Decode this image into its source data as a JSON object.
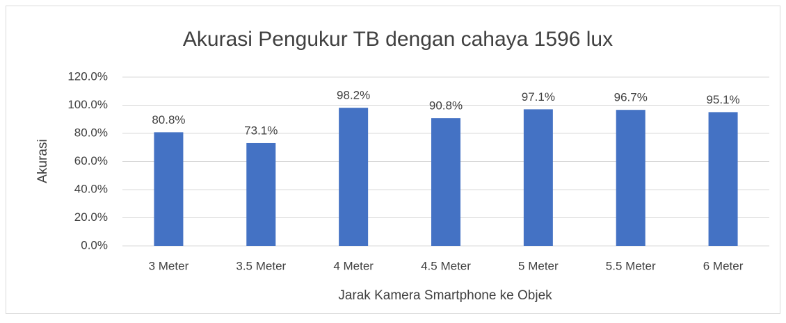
{
  "chart_data": {
    "type": "bar",
    "title": "Akurasi Pengukur TB dengan cahaya 1596 lux",
    "x_label": "Jarak Kamera Smartphone ke Objek",
    "y_label": "Akurasi",
    "categories": [
      "3 Meter",
      "3.5 Meter",
      "4 Meter",
      "4.5 Meter",
      "5 Meter",
      "5.5 Meter",
      "6 Meter"
    ],
    "values": [
      80.8,
      73.1,
      98.2,
      90.8,
      97.1,
      96.7,
      95.1
    ],
    "value_labels": [
      "80.8%",
      "73.1%",
      "98.2%",
      "90.8%",
      "97.1%",
      "96.7%",
      "95.1%"
    ],
    "color": "#4472c4",
    "ylim": [
      0,
      120
    ],
    "yticks": [
      {
        "value": 0,
        "label": "0.0%"
      },
      {
        "value": 20,
        "label": "20.0%"
      },
      {
        "value": 40,
        "label": "40.0%"
      },
      {
        "value": 60,
        "label": "60.0%"
      },
      {
        "value": 80,
        "label": "80.0%"
      },
      {
        "value": 100,
        "label": "100.0%"
      },
      {
        "value": 120,
        "label": "120.0%"
      }
    ],
    "grid": true
  }
}
